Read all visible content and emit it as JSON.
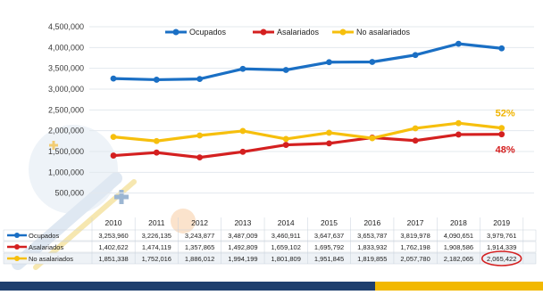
{
  "chart_data": {
    "type": "line",
    "title": "",
    "xlabel": "",
    "ylabel": "",
    "ylim": [
      0,
      4500000
    ],
    "y_ticks": [
      "500,000",
      "1,000,000",
      "1,500,000",
      "2,000,000",
      "2,500,000",
      "3,000,000",
      "3,500,000",
      "4,000,000",
      "4,500,000"
    ],
    "categories": [
      "2010",
      "2011",
      "2012",
      "2013",
      "2014",
      "2015",
      "2016",
      "2017",
      "2018",
      "2019"
    ],
    "legend_position": "top",
    "grid": true,
    "series": [
      {
        "name": "Ocupados",
        "color": "#1a6fc4",
        "values": [
          3253960,
          3226135,
          3243877,
          3487009,
          3460911,
          3647637,
          3653787,
          3819978,
          4090651,
          3979761
        ],
        "labels": [
          "3,253,960",
          "3,226,135",
          "3,243,877",
          "3,487,009",
          "3,460,911",
          "3,647,637",
          "3,653,787",
          "3,819,978",
          "4,090,651",
          "3,979,761"
        ]
      },
      {
        "name": "Asalariados",
        "color": "#d42020",
        "values": [
          1402622,
          1474119,
          1357865,
          1492809,
          1659102,
          1695792,
          1833932,
          1762198,
          1908586,
          1914339
        ],
        "labels": [
          "1,402,622",
          "1,474,119",
          "1,357,865",
          "1,492,809",
          "1,659,102",
          "1,695,792",
          "1,833,932",
          "1,762,198",
          "1,908,586",
          "1,914,339"
        ]
      },
      {
        "name": "No asalariados",
        "color": "#f6bf0d",
        "values": [
          1851338,
          1752016,
          1886012,
          1994199,
          1801809,
          1951845,
          1819855,
          2057780,
          2182065,
          2065422
        ],
        "labels": [
          "1,851,338",
          "1,752,016",
          "1,886,012",
          "1,994,199",
          "1,801,809",
          "1,951,845",
          "1,819,855",
          "2,057,780",
          "2,182,065",
          "2,065,422"
        ]
      }
    ],
    "annotations": [
      {
        "text": "52%",
        "series": "No asalariados",
        "color": "#f0b400"
      },
      {
        "text": "48%",
        "series": "Asalariados",
        "color": "#d42020"
      }
    ],
    "highlighted_cell": {
      "series": "No asalariados",
      "category": "2019"
    }
  }
}
